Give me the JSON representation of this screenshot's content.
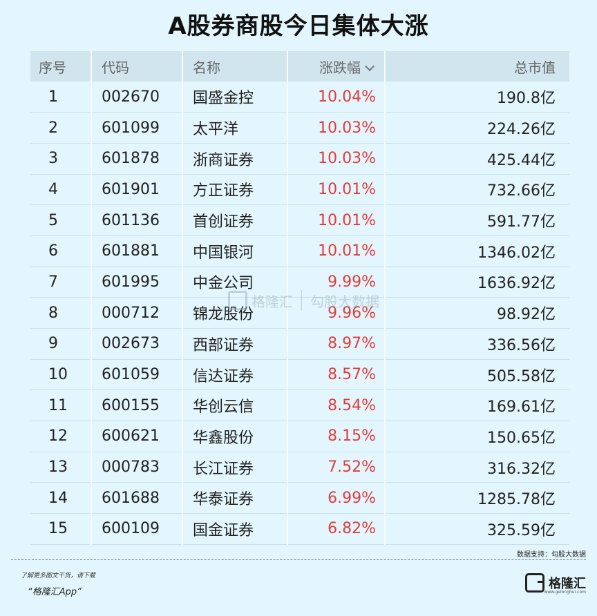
{
  "title": "A股券商股今日集体大涨",
  "chart_data": {
    "type": "table",
    "columns": [
      "序号",
      "代码",
      "名称",
      "涨跌幅",
      "总市值"
    ],
    "rows": [
      {
        "rank": "1",
        "code": "002670",
        "name": "国盛金控",
        "change": "10.04%",
        "cap": "190.8亿"
      },
      {
        "rank": "2",
        "code": "601099",
        "name": "太平洋",
        "change": "10.03%",
        "cap": "224.26亿"
      },
      {
        "rank": "3",
        "code": "601878",
        "name": "浙商证券",
        "change": "10.03%",
        "cap": "425.44亿"
      },
      {
        "rank": "4",
        "code": "601901",
        "name": "方正证券",
        "change": "10.01%",
        "cap": "732.66亿"
      },
      {
        "rank": "5",
        "code": "601136",
        "name": "首创证券",
        "change": "10.01%",
        "cap": "591.77亿"
      },
      {
        "rank": "6",
        "code": "601881",
        "name": "中国银河",
        "change": "10.01%",
        "cap": "1346.02亿"
      },
      {
        "rank": "7",
        "code": "601995",
        "name": "中金公司",
        "change": "9.99%",
        "cap": "1636.92亿"
      },
      {
        "rank": "8",
        "code": "000712",
        "name": "锦龙股份",
        "change": "9.96%",
        "cap": "98.92亿"
      },
      {
        "rank": "9",
        "code": "002673",
        "name": "西部证券",
        "change": "8.97%",
        "cap": "336.56亿"
      },
      {
        "rank": "10",
        "code": "601059",
        "name": "信达证券",
        "change": "8.57%",
        "cap": "505.58亿"
      },
      {
        "rank": "11",
        "code": "600155",
        "name": "华创云信",
        "change": "8.54%",
        "cap": "169.61亿"
      },
      {
        "rank": "12",
        "code": "600621",
        "name": "华鑫股份",
        "change": "8.15%",
        "cap": "150.65亿"
      },
      {
        "rank": "13",
        "code": "000783",
        "name": "长江证券",
        "change": "7.52%",
        "cap": "316.32亿"
      },
      {
        "rank": "14",
        "code": "601688",
        "name": "华泰证券",
        "change": "6.99%",
        "cap": "1285.78亿"
      },
      {
        "rank": "15",
        "code": "600109",
        "name": "国金证券",
        "change": "6.82%",
        "cap": "325.59亿"
      }
    ],
    "sort_column": "涨跌幅",
    "sort_order": "descending",
    "change_color": "#e23b3b"
  },
  "watermark": {
    "left": "格隆汇",
    "right": "勾股大数据"
  },
  "source": "数据支持：勾股大数据",
  "footer": {
    "line1": "了解更多图文干货，请下载",
    "line2": "“格隆汇App”"
  },
  "logo": {
    "text": "格隆汇",
    "sub": "www.gelonghui.com"
  },
  "colors": {
    "background": "#e3f6fd",
    "header_bg": "#d0e5ee"
  }
}
